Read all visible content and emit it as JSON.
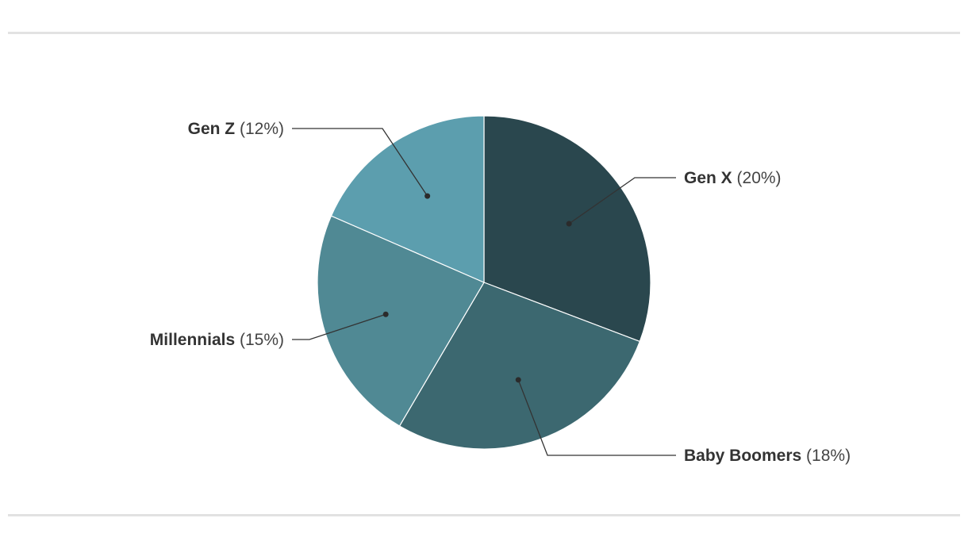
{
  "chart_data": {
    "type": "pie",
    "categories": [
      "Gen X",
      "Baby Boomers",
      "Millennials",
      "Gen Z"
    ],
    "values": [
      20,
      18,
      15,
      12
    ],
    "labels": [
      "20%",
      "18%",
      "15%",
      "12%"
    ],
    "colors": [
      "#2a474e",
      "#3c6870",
      "#508994",
      "#5c9eae"
    ],
    "start_angle_deg": 0,
    "direction": "clockwise",
    "slice_border": "#ffffff",
    "title": "",
    "legend": "none"
  }
}
